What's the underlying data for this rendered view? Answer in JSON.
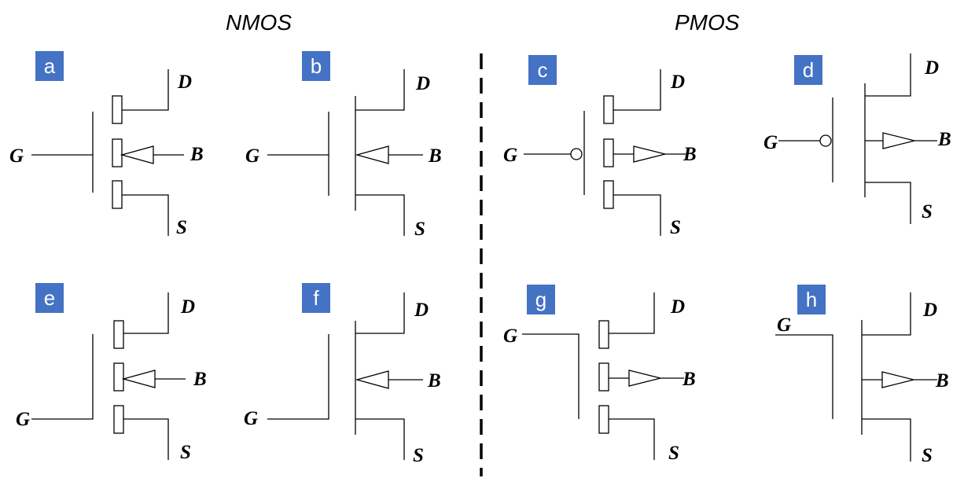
{
  "headers": {
    "nmos": "NMOS",
    "pmos": "PMOS"
  },
  "colors": {
    "badge": "#4472c4",
    "badge_text": "#ffffff",
    "line": "#000000"
  },
  "panels": [
    {
      "id": "a",
      "label": "a",
      "gate": "G",
      "drain": "D",
      "body": "B",
      "source": "S"
    },
    {
      "id": "b",
      "label": "b",
      "gate": "G",
      "drain": "D",
      "body": "B",
      "source": "S"
    },
    {
      "id": "c",
      "label": "c",
      "gate": "G",
      "drain": "D",
      "body": "B",
      "source": "S"
    },
    {
      "id": "d",
      "label": "d",
      "gate": "G",
      "drain": "D",
      "body": "B",
      "source": "S"
    },
    {
      "id": "e",
      "label": "e",
      "gate": "G",
      "drain": "D",
      "body": "B",
      "source": "S"
    },
    {
      "id": "f",
      "label": "f",
      "gate": "G",
      "drain": "D",
      "body": "B",
      "source": "S"
    },
    {
      "id": "g",
      "label": "g",
      "gate": "G",
      "drain": "D",
      "body": "B",
      "source": "S"
    },
    {
      "id": "h",
      "label": "h",
      "gate": "G",
      "drain": "D",
      "body": "B",
      "source": "S"
    }
  ]
}
